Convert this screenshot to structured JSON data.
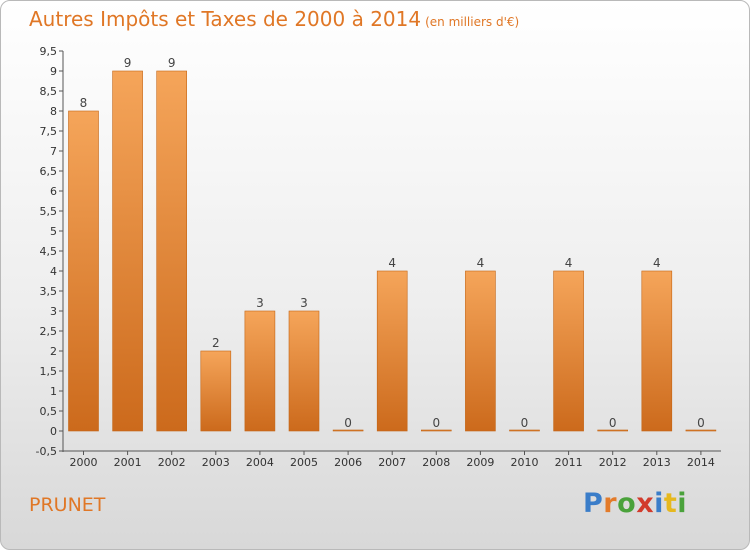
{
  "title": "Autres Impôts et Taxes de 2000 à 2014",
  "unit": "(en milliers d'€)",
  "commune": "PRUNET",
  "logo": {
    "text": "Proxiti",
    "colors": [
      "#3a7dc9",
      "#e37b2a",
      "#4aa23b",
      "#d23b2c",
      "#3a7dc9",
      "#e6b81e",
      "#4aa23b"
    ]
  },
  "colors": {
    "bar_light": "#f5a55a",
    "bar_dark": "#cc6a1c",
    "accent": "#e07726",
    "axis": "#555555"
  },
  "chart_data": {
    "type": "bar",
    "categories": [
      "2000",
      "2001",
      "2002",
      "2003",
      "2004",
      "2005",
      "2006",
      "2007",
      "2008",
      "2009",
      "2010",
      "2011",
      "2012",
      "2013",
      "2014"
    ],
    "values": [
      8,
      9,
      9,
      2,
      3,
      3,
      0,
      4,
      0,
      4,
      0,
      4,
      0,
      4,
      0
    ],
    "labels": [
      "8",
      "9",
      "9",
      "2",
      "3",
      "3",
      "0",
      "4",
      "0",
      "4",
      "0",
      "4",
      "0",
      "4",
      "0"
    ],
    "yticks": [
      -0.5,
      0,
      0.5,
      1,
      1.5,
      2,
      2.5,
      3,
      3.5,
      4,
      4.5,
      5,
      5.5,
      6,
      6.5,
      7,
      7.5,
      8,
      8.5,
      9,
      9.5
    ],
    "ytick_labels": [
      "-0,5",
      "0",
      "0,5",
      "1",
      "1,5",
      "2",
      "2,5",
      "3",
      "3,5",
      "4",
      "4,5",
      "5",
      "5,5",
      "6",
      "6,5",
      "7",
      "7,5",
      "8",
      "8,5",
      "9",
      "9,5"
    ],
    "ylim": [
      -0.5,
      9.5
    ],
    "grid": false,
    "legend": "none"
  }
}
